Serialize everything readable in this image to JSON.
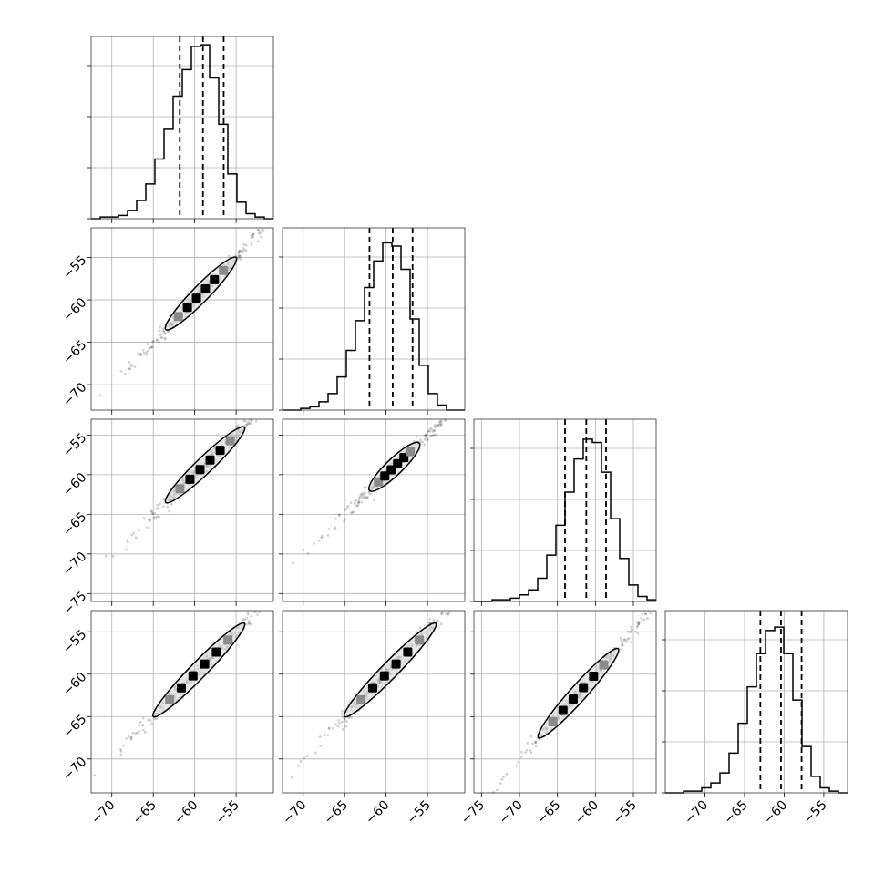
{
  "chart_data": {
    "type": "corner",
    "n_params": 4,
    "grid": true,
    "quantile_style": "dashed",
    "parameters": [
      {
        "xlim": [
          -72.5,
          -50.5
        ],
        "xticks": [
          -70,
          -65,
          -60,
          -55
        ],
        "hist_ylim": [
          0,
          1.1
        ],
        "quantiles": [
          -61.8,
          -59.0,
          -56.5
        ]
      },
      {
        "xlim": [
          -72.5,
          -50.5
        ],
        "xticks": [
          -70,
          -65,
          -60,
          -55
        ],
        "hist_ylim": [
          0,
          1.1
        ],
        "quantiles": [
          -62.0,
          -59.2,
          -56.8
        ]
      },
      {
        "xlim": [
          -76,
          -52
        ],
        "xticks": [
          -75,
          -70,
          -65,
          -60,
          -55
        ],
        "hist_ylim": [
          0,
          1.1
        ],
        "quantiles": [
          -64.0,
          -61.2,
          -58.6
        ]
      },
      {
        "xlim": [
          -75,
          -52
        ],
        "xticks": [
          -70,
          -65,
          -60,
          -55
        ],
        "hist_ylim": [
          0,
          1.1
        ],
        "quantiles": [
          -63.0,
          -60.4,
          -57.8
        ]
      }
    ],
    "panels": [
      {
        "row": 1,
        "col": 0,
        "ylim": [
          -73,
          -51.5
        ],
        "yticks": [
          -55,
          -60,
          -65,
          -70
        ],
        "contour_end_x": [
          -63.5,
          -55
        ]
      },
      {
        "row": 2,
        "col": 0,
        "ylim": [
          -76,
          -53
        ],
        "yticks": [
          -55,
          -60,
          -65,
          -70,
          -75
        ],
        "contour_end_x": [
          -63.5,
          -54
        ]
      },
      {
        "row": 2,
        "col": 1,
        "ylim": [
          -76,
          -53
        ],
        "yticks": [],
        "contour_end_x": [
          -62,
          -56
        ]
      },
      {
        "row": 3,
        "col": 0,
        "ylim": [
          -74,
          -52.5
        ],
        "yticks": [
          -55,
          -60,
          -65,
          -70
        ],
        "contour_end_x": [
          -65,
          -54
        ]
      },
      {
        "row": 3,
        "col": 1,
        "ylim": [
          -74,
          -52.5
        ],
        "yticks": [],
        "contour_end_x": [
          -65,
          -54
        ]
      },
      {
        "row": 3,
        "col": 2,
        "ylim": [
          -74,
          -52.5
        ],
        "yticks": [],
        "contour_end_x": [
          -67.5,
          -57
        ]
      }
    ],
    "histograms": [
      {
        "bin_start": -72.5,
        "bin_width": 1.1,
        "counts": [
          0.0,
          0.01,
          0.01,
          0.02,
          0.05,
          0.11,
          0.21,
          0.36,
          0.54,
          0.74,
          0.9,
          1.04,
          1.05,
          0.85,
          0.57,
          0.27,
          0.1,
          0.03,
          0.01,
          0.0
        ]
      },
      {
        "bin_start": -72.5,
        "bin_width": 1.1,
        "counts": [
          0.0,
          0.0,
          0.01,
          0.02,
          0.05,
          0.1,
          0.2,
          0.36,
          0.54,
          0.74,
          0.9,
          1.01,
          0.99,
          0.85,
          0.55,
          0.27,
          0.1,
          0.03,
          0.0,
          0.0
        ]
      },
      {
        "bin_start": -76,
        "bin_width": 1.2,
        "counts": [
          0.0,
          0.0,
          0.01,
          0.01,
          0.02,
          0.04,
          0.07,
          0.14,
          0.28,
          0.46,
          0.66,
          0.86,
          0.98,
          0.96,
          0.78,
          0.5,
          0.26,
          0.1,
          0.03,
          0.01
        ]
      },
      {
        "bin_start": -75,
        "bin_width": 1.15,
        "counts": [
          0.0,
          0.0,
          0.01,
          0.01,
          0.03,
          0.06,
          0.12,
          0.24,
          0.42,
          0.64,
          0.84,
          0.98,
          1.0,
          0.84,
          0.56,
          0.28,
          0.1,
          0.03,
          0.01,
          0.0
        ]
      }
    ]
  }
}
